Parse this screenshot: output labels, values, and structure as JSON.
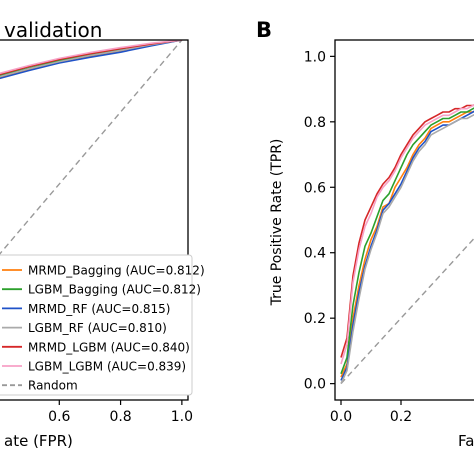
{
  "chart_data": [
    {
      "type": "line",
      "panel_label": "",
      "title": "validation",
      "xlabel": "ate (FPR)",
      "ylabel": "",
      "xlim": [
        0.4,
        1.02
      ],
      "ylim": [
        0.0,
        1.0
      ],
      "x_ticks": [
        0.6,
        0.8,
        1.0
      ],
      "x_tick_labels": [
        "0.6",
        "0.8",
        "1.0"
      ],
      "grid": false,
      "legend_position": "lower-left",
      "series": [
        {
          "name": "MRMD_Bagging (AUC=0.812)",
          "color": "#ff7f0e",
          "x": [
            0.4,
            0.5,
            0.6,
            0.7,
            0.8,
            0.9,
            1.0
          ],
          "y": [
            0.895,
            0.918,
            0.938,
            0.955,
            0.97,
            0.986,
            1.0
          ]
        },
        {
          "name": "LGBM_Bagging (AUC=0.812)",
          "color": "#2ca02c",
          "x": [
            0.4,
            0.5,
            0.6,
            0.7,
            0.8,
            0.9,
            1.0
          ],
          "y": [
            0.9,
            0.922,
            0.943,
            0.96,
            0.974,
            0.988,
            1.0
          ]
        },
        {
          "name": "MRMD_RF (AUC=0.815)",
          "color": "#1f52c8",
          "x": [
            0.4,
            0.5,
            0.6,
            0.7,
            0.8,
            0.9,
            1.0
          ],
          "y": [
            0.892,
            0.915,
            0.936,
            0.952,
            0.966,
            0.984,
            1.0
          ]
        },
        {
          "name": "LGBM_RF (AUC=0.810)",
          "color": "#aaaaaa",
          "x": [
            0.4,
            0.5,
            0.6,
            0.7,
            0.8,
            0.9,
            1.0
          ],
          "y": [
            0.897,
            0.92,
            0.94,
            0.957,
            0.971,
            0.987,
            1.0
          ]
        },
        {
          "name": "MRMD_LGBM (AUC=0.840)",
          "color": "#d62728",
          "x": [
            0.4,
            0.5,
            0.6,
            0.7,
            0.8,
            0.9,
            1.0
          ],
          "y": [
            0.903,
            0.926,
            0.946,
            0.962,
            0.976,
            0.989,
            1.0
          ]
        },
        {
          "name": "LGBM_LGBM (AUC=0.839)",
          "color": "#f7a1c6",
          "x": [
            0.4,
            0.5,
            0.6,
            0.7,
            0.8,
            0.9,
            1.0
          ],
          "y": [
            0.906,
            0.929,
            0.949,
            0.965,
            0.979,
            0.991,
            1.0
          ]
        },
        {
          "name": "Random",
          "color": "#999999",
          "dashed": true,
          "x": [
            0.4,
            1.0
          ],
          "y": [
            0.4,
            1.0
          ]
        }
      ]
    },
    {
      "type": "line",
      "panel_label": "B",
      "title": "",
      "xlabel": "Fa",
      "ylabel": "True Positive Rate (TPR)",
      "xlim": [
        -0.02,
        0.48
      ],
      "ylim": [
        -0.05,
        1.05
      ],
      "x_ticks": [
        0.0,
        0.2
      ],
      "x_tick_labels": [
        "0.0",
        "0.2"
      ],
      "y_ticks": [
        0.0,
        0.2,
        0.4,
        0.6,
        0.8,
        1.0
      ],
      "y_tick_labels": [
        "0.0",
        "0.2",
        "0.4",
        "0.6",
        "0.8",
        "1.0"
      ],
      "grid": false,
      "legend_position": "none",
      "series": [
        {
          "name": "MRMD_Bagging",
          "color": "#ff7f0e",
          "x": [
            0.0,
            0.02,
            0.04,
            0.06,
            0.08,
            0.1,
            0.12,
            0.14,
            0.16,
            0.18,
            0.2,
            0.22,
            0.24,
            0.26,
            0.28,
            0.3,
            0.32,
            0.34,
            0.36,
            0.38,
            0.4,
            0.42,
            0.44,
            0.46
          ],
          "y": [
            0.02,
            0.06,
            0.2,
            0.3,
            0.38,
            0.44,
            0.48,
            0.54,
            0.55,
            0.6,
            0.63,
            0.66,
            0.7,
            0.73,
            0.75,
            0.78,
            0.79,
            0.8,
            0.8,
            0.81,
            0.82,
            0.83,
            0.83,
            0.84
          ]
        },
        {
          "name": "LGBM_Bagging",
          "color": "#2ca02c",
          "x": [
            0.0,
            0.02,
            0.04,
            0.06,
            0.08,
            0.1,
            0.12,
            0.14,
            0.16,
            0.18,
            0.2,
            0.22,
            0.24,
            0.26,
            0.28,
            0.3,
            0.32,
            0.34,
            0.36,
            0.38,
            0.4,
            0.42,
            0.44,
            0.46
          ],
          "y": [
            0.03,
            0.08,
            0.24,
            0.34,
            0.42,
            0.46,
            0.51,
            0.56,
            0.58,
            0.62,
            0.66,
            0.7,
            0.73,
            0.75,
            0.77,
            0.79,
            0.8,
            0.81,
            0.81,
            0.82,
            0.83,
            0.83,
            0.84,
            0.85
          ]
        },
        {
          "name": "MRMD_RF",
          "color": "#1f52c8",
          "x": [
            0.0,
            0.02,
            0.04,
            0.06,
            0.08,
            0.1,
            0.12,
            0.14,
            0.16,
            0.18,
            0.2,
            0.22,
            0.24,
            0.26,
            0.28,
            0.3,
            0.32,
            0.34,
            0.36,
            0.38,
            0.4,
            0.42,
            0.44,
            0.46
          ],
          "y": [
            0.01,
            0.05,
            0.18,
            0.28,
            0.36,
            0.42,
            0.47,
            0.53,
            0.55,
            0.58,
            0.61,
            0.65,
            0.69,
            0.72,
            0.74,
            0.77,
            0.78,
            0.79,
            0.79,
            0.8,
            0.81,
            0.82,
            0.83,
            0.84
          ]
        },
        {
          "name": "LGBM_RF",
          "color": "#aaaaaa",
          "x": [
            0.0,
            0.02,
            0.04,
            0.06,
            0.08,
            0.1,
            0.12,
            0.14,
            0.16,
            0.18,
            0.2,
            0.22,
            0.24,
            0.26,
            0.28,
            0.3,
            0.32,
            0.34,
            0.36,
            0.38,
            0.4,
            0.42,
            0.44,
            0.46
          ],
          "y": [
            0.0,
            0.04,
            0.16,
            0.26,
            0.35,
            0.41,
            0.46,
            0.52,
            0.54,
            0.57,
            0.6,
            0.64,
            0.68,
            0.71,
            0.73,
            0.76,
            0.77,
            0.78,
            0.79,
            0.8,
            0.81,
            0.81,
            0.82,
            0.83
          ]
        },
        {
          "name": "MRMD_LGBM",
          "color": "#d62728",
          "x": [
            0.0,
            0.02,
            0.04,
            0.06,
            0.08,
            0.1,
            0.12,
            0.14,
            0.16,
            0.18,
            0.2,
            0.22,
            0.24,
            0.26,
            0.28,
            0.3,
            0.32,
            0.34,
            0.36,
            0.38,
            0.4,
            0.42,
            0.44,
            0.46
          ],
          "y": [
            0.08,
            0.14,
            0.33,
            0.43,
            0.5,
            0.54,
            0.58,
            0.61,
            0.63,
            0.66,
            0.7,
            0.73,
            0.76,
            0.78,
            0.8,
            0.81,
            0.82,
            0.83,
            0.83,
            0.84,
            0.84,
            0.85,
            0.85,
            0.86
          ]
        },
        {
          "name": "LGBM_LGBM",
          "color": "#f7a1c6",
          "x": [
            0.0,
            0.02,
            0.04,
            0.06,
            0.08,
            0.1,
            0.12,
            0.14,
            0.16,
            0.18,
            0.2,
            0.22,
            0.24,
            0.26,
            0.28,
            0.3,
            0.32,
            0.34,
            0.36,
            0.38,
            0.4,
            0.42,
            0.44,
            0.46
          ],
          "y": [
            0.06,
            0.12,
            0.31,
            0.41,
            0.48,
            0.52,
            0.57,
            0.6,
            0.62,
            0.65,
            0.69,
            0.72,
            0.75,
            0.77,
            0.79,
            0.8,
            0.81,
            0.82,
            0.82,
            0.83,
            0.84,
            0.84,
            0.85,
            0.86
          ]
        },
        {
          "name": "Random",
          "color": "#999999",
          "dashed": true,
          "x": [
            0.0,
            0.46
          ],
          "y": [
            0.0,
            0.46
          ]
        }
      ]
    }
  ]
}
